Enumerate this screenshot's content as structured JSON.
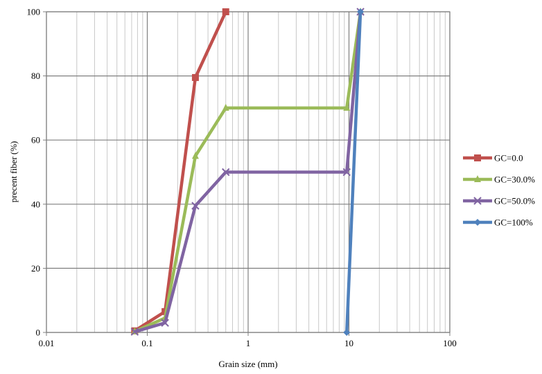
{
  "chart_data": {
    "type": "line",
    "xscale": "log",
    "xlim": [
      0.01,
      100
    ],
    "ylim": [
      0,
      100
    ],
    "grid": true,
    "legend_position": "right",
    "xlabel": "Grain size (mm)",
    "ylabel": "precent fiber (%)",
    "x_ticks": [
      0.01,
      0.1,
      1,
      10,
      100
    ],
    "x_tick_labels": [
      "0.01",
      "0.1",
      "1",
      "10",
      "100"
    ],
    "y_ticks": [
      0,
      20,
      40,
      60,
      80,
      100
    ],
    "y_tick_labels": [
      "0",
      "20",
      "40",
      "60",
      "80",
      "100"
    ],
    "series": [
      {
        "name": "GC=0.0",
        "color": "#c0504d",
        "marker": "square",
        "x": [
          0.075,
          0.15,
          0.3,
          0.6
        ],
        "y": [
          0.5,
          6.5,
          79.5,
          100
        ]
      },
      {
        "name": "GC=30.0%",
        "color": "#9bbb59",
        "marker": "triangle",
        "x": [
          0.075,
          0.15,
          0.3,
          0.6,
          9.5,
          13
        ],
        "y": [
          0.3,
          4.5,
          55,
          70,
          70,
          100
        ]
      },
      {
        "name": "GC=50.0%",
        "color": "#8064a2",
        "marker": "x",
        "x": [
          0.075,
          0.15,
          0.3,
          0.6,
          9.5,
          13
        ],
        "y": [
          0.2,
          3,
          39.5,
          50,
          50,
          100
        ]
      },
      {
        "name": "GC=100%",
        "color": "#4f81bd",
        "marker": "diamond",
        "x": [
          9.5,
          13
        ],
        "y": [
          0,
          100
        ]
      }
    ]
  }
}
